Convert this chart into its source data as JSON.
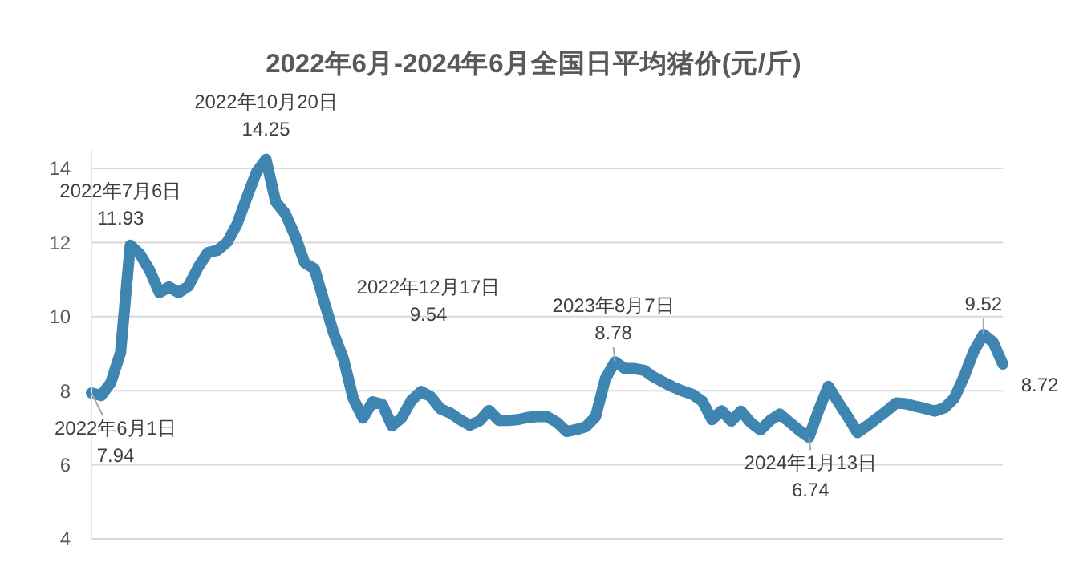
{
  "chart_data": {
    "type": "line",
    "title": "2022年6月-2024年6月全国日平均猪价(元/斤)",
    "categories": [
      null,
      null,
      null,
      null,
      null,
      null,
      null,
      null,
      null,
      null,
      null,
      null,
      null,
      null,
      null,
      null,
      null,
      null,
      null,
      null,
      null,
      null,
      null,
      null,
      null,
      null,
      null,
      null,
      null,
      null,
      null,
      null,
      null,
      null,
      null,
      null,
      null,
      null,
      null,
      null,
      null,
      null,
      null,
      null,
      null,
      null,
      null,
      null,
      null,
      null,
      null,
      null,
      null,
      null,
      null,
      null,
      null,
      null,
      null,
      null,
      null,
      null,
      null,
      null,
      null,
      null,
      null,
      null,
      null,
      null,
      null,
      null,
      null,
      null,
      null,
      null,
      null,
      null,
      null,
      null,
      null,
      null,
      null,
      null,
      null,
      null,
      null,
      null,
      null,
      null,
      null,
      null,
      null,
      null,
      null
    ],
    "ylim": [
      4,
      14.5
    ],
    "yticks": [
      4,
      6,
      8,
      10,
      12,
      14
    ],
    "grid": "y",
    "series": [
      {
        "color": "#3e86b1",
        "values": [
          7.94,
          7.87,
          8.22,
          9.03,
          11.93,
          11.69,
          11.25,
          10.65,
          10.8,
          10.65,
          10.82,
          11.33,
          11.73,
          11.79,
          12.01,
          12.49,
          13.2,
          13.89,
          14.25,
          13.1,
          12.78,
          12.18,
          11.45,
          11.29,
          10.4,
          9.54,
          8.85,
          7.79,
          7.26,
          7.7,
          7.63,
          7.05,
          7.27,
          7.74,
          7.98,
          7.84,
          7.51,
          7.4,
          7.22,
          7.07,
          7.18,
          7.47,
          7.2,
          7.2,
          7.22,
          7.28,
          7.3,
          7.3,
          7.15,
          6.9,
          6.95,
          7.03,
          7.3,
          8.32,
          8.78,
          8.6,
          8.6,
          8.55,
          8.37,
          8.23,
          8.1,
          7.99,
          7.9,
          7.72,
          7.22,
          7.46,
          7.18,
          7.45,
          7.14,
          6.94,
          7.2,
          7.37,
          7.15,
          6.93,
          6.74,
          7.47,
          8.12,
          7.7,
          7.3,
          6.87,
          7.05,
          7.25,
          7.45,
          7.67,
          7.65,
          7.58,
          7.52,
          7.45,
          7.54,
          7.8,
          8.38,
          9.06,
          9.52,
          9.31,
          8.72
        ]
      }
    ],
    "annotations": [
      {
        "text": "2022年6月1日\n7.94",
        "y": 7.94
      },
      {
        "text": "2022年7月6日\n11.93",
        "y": 11.93
      },
      {
        "text": "2022年10月20日\n14.25",
        "y": 14.25
      },
      "2022年12月17日\n9.54",
      {
        "text": "2023年8月7日\n8.78",
        "y": 8.78
      },
      {
        "text": "2024年1月13日\n6.74",
        "y": 6.74
      },
      {
        "text": "9.52",
        "y": 9.52
      },
      "8.72"
    ]
  }
}
